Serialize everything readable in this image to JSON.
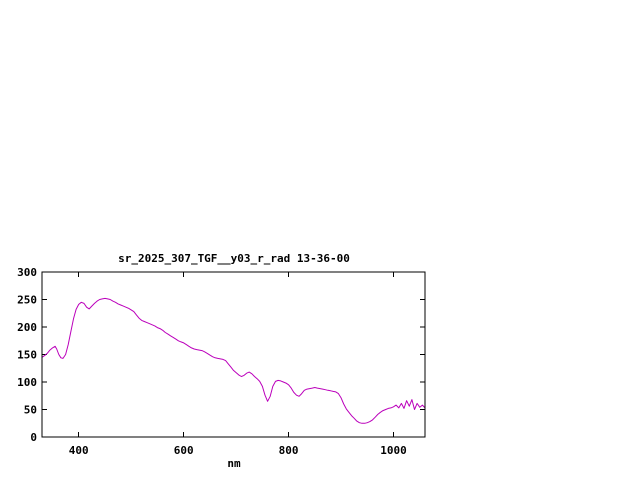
{
  "chart_data": {
    "type": "line",
    "title": "sr_2025_307_TGF__y03_r_rad 13-36-00",
    "xlabel": "nm",
    "ylabel": "",
    "xlim": [
      330,
      1060
    ],
    "ylim": [
      0,
      300
    ],
    "xticks": [
      400,
      600,
      800,
      1000
    ],
    "yticks": [
      0,
      50,
      100,
      150,
      200,
      250,
      300
    ],
    "grid": false,
    "legend": "none",
    "line_color": "#bb00bb",
    "axis_color": "#000000",
    "background_color": "#ffffff",
    "series": [
      {
        "name": "sr_2025_307_TGF__y03_r_rad 13-36-00",
        "points": [
          [
            330,
            145
          ],
          [
            335,
            148
          ],
          [
            340,
            152
          ],
          [
            345,
            158
          ],
          [
            350,
            162
          ],
          [
            355,
            165
          ],
          [
            358,
            160
          ],
          [
            362,
            150
          ],
          [
            366,
            144
          ],
          [
            370,
            143
          ],
          [
            375,
            150
          ],
          [
            380,
            168
          ],
          [
            385,
            192
          ],
          [
            390,
            215
          ],
          [
            395,
            232
          ],
          [
            400,
            241
          ],
          [
            405,
            245
          ],
          [
            410,
            243
          ],
          [
            415,
            236
          ],
          [
            420,
            233
          ],
          [
            425,
            238
          ],
          [
            430,
            243
          ],
          [
            435,
            247
          ],
          [
            440,
            250
          ],
          [
            445,
            251
          ],
          [
            450,
            252
          ],
          [
            455,
            251
          ],
          [
            460,
            250
          ],
          [
            465,
            247
          ],
          [
            470,
            245
          ],
          [
            475,
            242
          ],
          [
            480,
            240
          ],
          [
            485,
            238
          ],
          [
            490,
            236
          ],
          [
            495,
            234
          ],
          [
            500,
            231
          ],
          [
            505,
            228
          ],
          [
            510,
            222
          ],
          [
            515,
            216
          ],
          [
            520,
            212
          ],
          [
            525,
            210
          ],
          [
            530,
            208
          ],
          [
            535,
            206
          ],
          [
            540,
            204
          ],
          [
            545,
            202
          ],
          [
            550,
            199
          ],
          [
            555,
            197
          ],
          [
            560,
            194
          ],
          [
            565,
            190
          ],
          [
            570,
            187
          ],
          [
            575,
            184
          ],
          [
            580,
            181
          ],
          [
            585,
            178
          ],
          [
            590,
            175
          ],
          [
            595,
            173
          ],
          [
            600,
            171
          ],
          [
            605,
            168
          ],
          [
            610,
            165
          ],
          [
            615,
            162
          ],
          [
            620,
            160
          ],
          [
            625,
            159
          ],
          [
            630,
            158
          ],
          [
            635,
            157
          ],
          [
            640,
            155
          ],
          [
            645,
            152
          ],
          [
            650,
            149
          ],
          [
            655,
            146
          ],
          [
            660,
            144
          ],
          [
            665,
            143
          ],
          [
            670,
            142
          ],
          [
            675,
            141
          ],
          [
            680,
            139
          ],
          [
            685,
            133
          ],
          [
            690,
            127
          ],
          [
            695,
            121
          ],
          [
            700,
            117
          ],
          [
            705,
            113
          ],
          [
            710,
            110
          ],
          [
            715,
            112
          ],
          [
            720,
            116
          ],
          [
            725,
            118
          ],
          [
            730,
            115
          ],
          [
            735,
            110
          ],
          [
            740,
            106
          ],
          [
            745,
            101
          ],
          [
            750,
            92
          ],
          [
            755,
            76
          ],
          [
            760,
            65
          ],
          [
            765,
            74
          ],
          [
            770,
            92
          ],
          [
            775,
            101
          ],
          [
            780,
            103
          ],
          [
            785,
            102
          ],
          [
            790,
            100
          ],
          [
            795,
            98
          ],
          [
            800,
            95
          ],
          [
            805,
            89
          ],
          [
            810,
            81
          ],
          [
            815,
            76
          ],
          [
            820,
            74
          ],
          [
            825,
            79
          ],
          [
            830,
            85
          ],
          [
            835,
            87
          ],
          [
            840,
            88
          ],
          [
            845,
            89
          ],
          [
            850,
            90
          ],
          [
            855,
            89
          ],
          [
            860,
            88
          ],
          [
            865,
            87
          ],
          [
            870,
            86
          ],
          [
            875,
            85
          ],
          [
            880,
            84
          ],
          [
            885,
            83
          ],
          [
            890,
            82
          ],
          [
            895,
            79
          ],
          [
            900,
            71
          ],
          [
            905,
            60
          ],
          [
            910,
            51
          ],
          [
            915,
            45
          ],
          [
            920,
            39
          ],
          [
            925,
            34
          ],
          [
            930,
            29
          ],
          [
            935,
            26
          ],
          [
            940,
            25
          ],
          [
            945,
            25
          ],
          [
            950,
            26
          ],
          [
            955,
            28
          ],
          [
            960,
            31
          ],
          [
            965,
            36
          ],
          [
            970,
            41
          ],
          [
            975,
            45
          ],
          [
            980,
            48
          ],
          [
            985,
            50
          ],
          [
            990,
            52
          ],
          [
            995,
            53
          ],
          [
            1000,
            55
          ],
          [
            1005,
            58
          ],
          [
            1010,
            53
          ],
          [
            1015,
            61
          ],
          [
            1020,
            52
          ],
          [
            1025,
            66
          ],
          [
            1030,
            56
          ],
          [
            1035,
            68
          ],
          [
            1040,
            50
          ],
          [
            1045,
            61
          ],
          [
            1050,
            54
          ],
          [
            1055,
            58
          ],
          [
            1060,
            53
          ]
        ]
      }
    ]
  }
}
